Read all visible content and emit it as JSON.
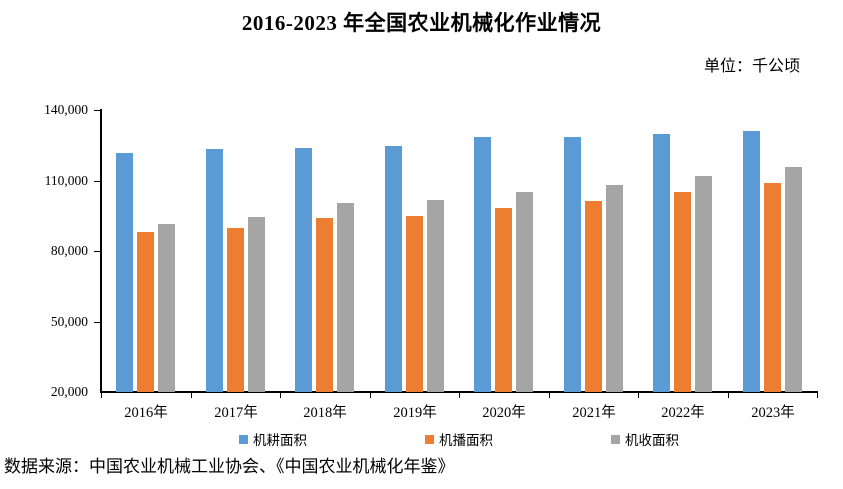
{
  "page": {
    "title": "2016-2023 年全国农业机械化作业情况",
    "unit_label": "单位：千公顷",
    "source": "数据来源：中国农业机械工业协会、《中国农业机械化年鉴》"
  },
  "chart_data": {
    "type": "bar",
    "title": "2016-2023 年全国农业机械化作业情况",
    "unit": "千公顷",
    "categories": [
      "2016年",
      "2017年",
      "2018年",
      "2019年",
      "2020年",
      "2021年",
      "2022年",
      "2023年"
    ],
    "series": [
      {
        "name": "机耕面积",
        "color": "#5B9BD5",
        "values": [
          121900,
          123400,
          124000,
          124700,
          128400,
          128600,
          129900,
          131200
        ]
      },
      {
        "name": "机播面积",
        "color": "#ED7D31",
        "values": [
          88000,
          89700,
          94200,
          94800,
          98400,
          101200,
          105000,
          108800
        ]
      },
      {
        "name": "机收面积",
        "color": "#A5A5A5",
        "values": [
          91600,
          94400,
          100400,
          101500,
          105300,
          107900,
          112100,
          115600
        ]
      }
    ],
    "ylim": [
      20000,
      140000
    ],
    "yticks": [
      20000,
      50000,
      80000,
      110000,
      140000
    ],
    "ytick_labels": [
      "20,000",
      "50,000",
      "80,000",
      "110,000",
      "140,000"
    ],
    "grid": false,
    "legend_position": "bottom",
    "axis_color": "#000000"
  }
}
